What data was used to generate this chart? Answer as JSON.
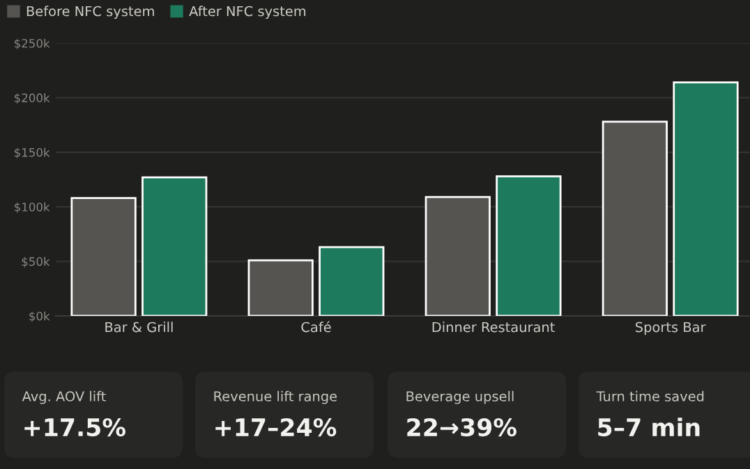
{
  "chart_data": [
    {
      "type": "bar",
      "categories": [
        "Bar & Grill",
        "Café",
        "Dinner Restaurant",
        "Sports Bar"
      ],
      "series": [
        {
          "name": "Before NFC system",
          "color": "#565450",
          "values": [
            108000,
            51000,
            109000,
            178000
          ]
        },
        {
          "name": "After NFC system",
          "color": "#1e7a5c",
          "values": [
            127000,
            63000,
            128000,
            214000
          ]
        }
      ],
      "ylim": [
        0,
        250000
      ],
      "yticks": [
        {
          "value": 0,
          "label": "$0k"
        },
        {
          "value": 50000,
          "label": "$50k"
        },
        {
          "value": 100000,
          "label": "$100k"
        },
        {
          "value": 150000,
          "label": "$150k"
        },
        {
          "value": 200000,
          "label": "$200k"
        },
        {
          "value": 250000,
          "label": "$250k"
        }
      ],
      "grid": "y",
      "legend": "top left"
    },
    {
      "type": "other",
      "title": "Avg. AOV lift",
      "annotations": [
        "+17.5%"
      ]
    },
    {
      "type": "other",
      "title": "Revenue lift range",
      "annotations": [
        "+17–24%"
      ]
    },
    {
      "type": "other",
      "title": "Beverage upsell",
      "annotations": [
        "22→39%"
      ]
    },
    {
      "type": "other",
      "title": "Turn time saved",
      "annotations": [
        "5–7 min"
      ]
    }
  ]
}
